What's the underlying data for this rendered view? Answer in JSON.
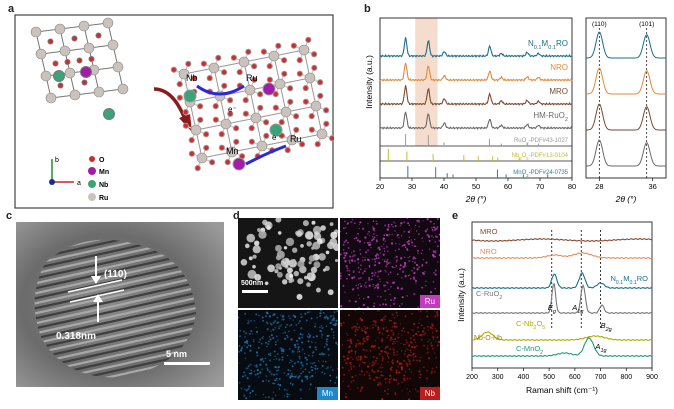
{
  "panels": {
    "a": {
      "letter": "a",
      "axes": {
        "b": "b",
        "a": "a"
      },
      "legend": [
        {
          "label": "O",
          "color": "#d42a2a"
        },
        {
          "label": "Mn",
          "color": "#a21ca8"
        },
        {
          "label": "Nb",
          "color": "#3aa37a"
        },
        {
          "label": "Ru",
          "color": "#c9c2bd"
        }
      ],
      "structure_labels": {
        "nb": "Nb",
        "ru1": "Ru",
        "ru2": "Ru",
        "mn": "Mn",
        "e1": "e⁻",
        "e2": "e⁻"
      }
    },
    "b": {
      "letter": "b"
    },
    "c": {
      "letter": "c",
      "plane": "(110)",
      "spacing": "0.318nm",
      "scale": "5 nm"
    },
    "d": {
      "letter": "d",
      "scale": "500nm",
      "tiles": [
        {
          "label": "Ru",
          "color": "#c53bbf"
        },
        {
          "label": "Mn",
          "color": "#1f86c7"
        },
        {
          "label": "Nb",
          "color": "#b91e1e"
        }
      ]
    },
    "e": {
      "letter": "e"
    }
  },
  "chart_data": [
    {
      "id": "xrd",
      "type": "line",
      "xlabel": "2θ (°)",
      "ylabel": "Intensity (a.u.)",
      "xlim": [
        20,
        80
      ],
      "xticks": [
        20,
        30,
        40,
        50,
        60,
        70,
        80
      ],
      "series": [
        {
          "name": "N0.1M0.1RO",
          "html_name": "N<sub>0.1</sub>M<sub>0.1</sub>RO",
          "color": "#1b6e8c",
          "offset": 4,
          "peaks": [
            [
              28.0,
              1.0
            ],
            [
              35.1,
              0.85
            ],
            [
              40.1,
              0.25
            ],
            [
              54.3,
              0.55
            ],
            [
              57.9,
              0.15
            ],
            [
              66.0,
              0.2
            ],
            [
              69.5,
              0.15
            ]
          ]
        },
        {
          "name": "NRO",
          "html_name": "NRO",
          "color": "#e08a3a",
          "offset": 3,
          "peaks": [
            [
              28.0,
              0.95
            ],
            [
              35.1,
              0.8
            ],
            [
              40.1,
              0.25
            ],
            [
              54.3,
              0.5
            ],
            [
              57.9,
              0.15
            ],
            [
              66.0,
              0.18
            ],
            [
              69.5,
              0.15
            ]
          ]
        },
        {
          "name": "MRO",
          "html_name": "MRO",
          "color": "#7a4a30",
          "offset": 2,
          "peaks": [
            [
              28.0,
              1.0
            ],
            [
              35.1,
              0.85
            ],
            [
              40.1,
              0.3
            ],
            [
              54.3,
              0.55
            ],
            [
              57.9,
              0.18
            ],
            [
              66.0,
              0.2
            ],
            [
              69.5,
              0.15
            ]
          ]
        },
        {
          "name": "HM-RuO2",
          "html_name": "HM-RuO<sub>2</sub>",
          "color": "#6a6a6a",
          "offset": 1,
          "peaks": [
            [
              28.0,
              0.9
            ],
            [
              35.1,
              0.8
            ],
            [
              40.1,
              0.28
            ],
            [
              54.3,
              0.5
            ],
            [
              57.9,
              0.15
            ],
            [
              66.0,
              0.2
            ],
            [
              69.5,
              0.15
            ]
          ]
        }
      ],
      "references": [
        {
          "name": "RuO2-PDF#43-1027",
          "html_name": "RuO<sub>2</sub>-PDF#43-1027",
          "color": "#9a9a9a",
          "lines": [
            [
              28.0,
              1.0
            ],
            [
              35.1,
              0.9
            ],
            [
              40.0,
              0.3
            ],
            [
              54.2,
              0.6
            ],
            [
              57.9,
              0.2
            ],
            [
              66.0,
              0.25
            ],
            [
              69.5,
              0.2
            ]
          ]
        },
        {
          "name": "Nb2O5-PDF#13-0104",
          "html_name": "Nb<sub>2</sub>O<sub>5</sub>-PDF#13-0104",
          "color": "#c9bb2e",
          "lines": [
            [
              22.6,
              1.0
            ],
            [
              28.4,
              0.8
            ],
            [
              36.6,
              0.6
            ],
            [
              46.2,
              0.5
            ],
            [
              50.7,
              0.4
            ],
            [
              55.2,
              0.4
            ],
            [
              56.8,
              0.3
            ],
            [
              63.5,
              0.3
            ]
          ]
        },
        {
          "name": "MnO2-PDF#24-0735",
          "html_name": "MnO<sub>2</sub>-PDF#24-0735",
          "color": "#2e7e99",
          "lines": [
            [
              28.7,
              1.0
            ],
            [
              37.4,
              0.9
            ],
            [
              41.0,
              0.4
            ],
            [
              42.8,
              0.3
            ],
            [
              56.7,
              0.7
            ],
            [
              59.4,
              0.3
            ],
            [
              64.8,
              0.3
            ],
            [
              72.4,
              0.3
            ]
          ]
        }
      ],
      "inset": {
        "xlim": [
          26,
          38
        ],
        "xticks": [
          28,
          36
        ],
        "labels": [
          "(110)",
          "(101)"
        ]
      }
    },
    {
      "id": "raman",
      "type": "line",
      "xlabel": "Raman shift (cm⁻¹)",
      "ylabel": "Intensity (a.u.)",
      "xlim": [
        200,
        900
      ],
      "xticks": [
        200,
        300,
        400,
        500,
        600,
        700,
        800,
        900
      ],
      "series": [
        {
          "name": "MRO",
          "html_name": "MRO",
          "color": "#8a4a2e"
        },
        {
          "name": "NRO",
          "html_name": "NRO",
          "color": "#e09060"
        },
        {
          "name": "N0.1M0.1RO",
          "html_name": "N<sub>0.1</sub>M<sub>0.1</sub>RO",
          "color": "#1b6e8c"
        },
        {
          "name": "C-RuO2",
          "html_name": "C-RuO<sub>2</sub>",
          "color": "#777777"
        },
        {
          "name": "C-Nb2O5",
          "html_name": "C-Nb<sub>2</sub>O<sub>5</sub>",
          "color": "#b7a800"
        },
        {
          "name": "C-MnO2",
          "html_name": "C-MnO<sub>2</sub>",
          "color": "#1f9a80"
        }
      ],
      "mode_labels": [
        "Eg",
        "A1g",
        "B2g",
        "A1g"
      ],
      "band_label": "Nb-O-Nb",
      "dashed_at": [
        510,
        625,
        700
      ]
    }
  ]
}
